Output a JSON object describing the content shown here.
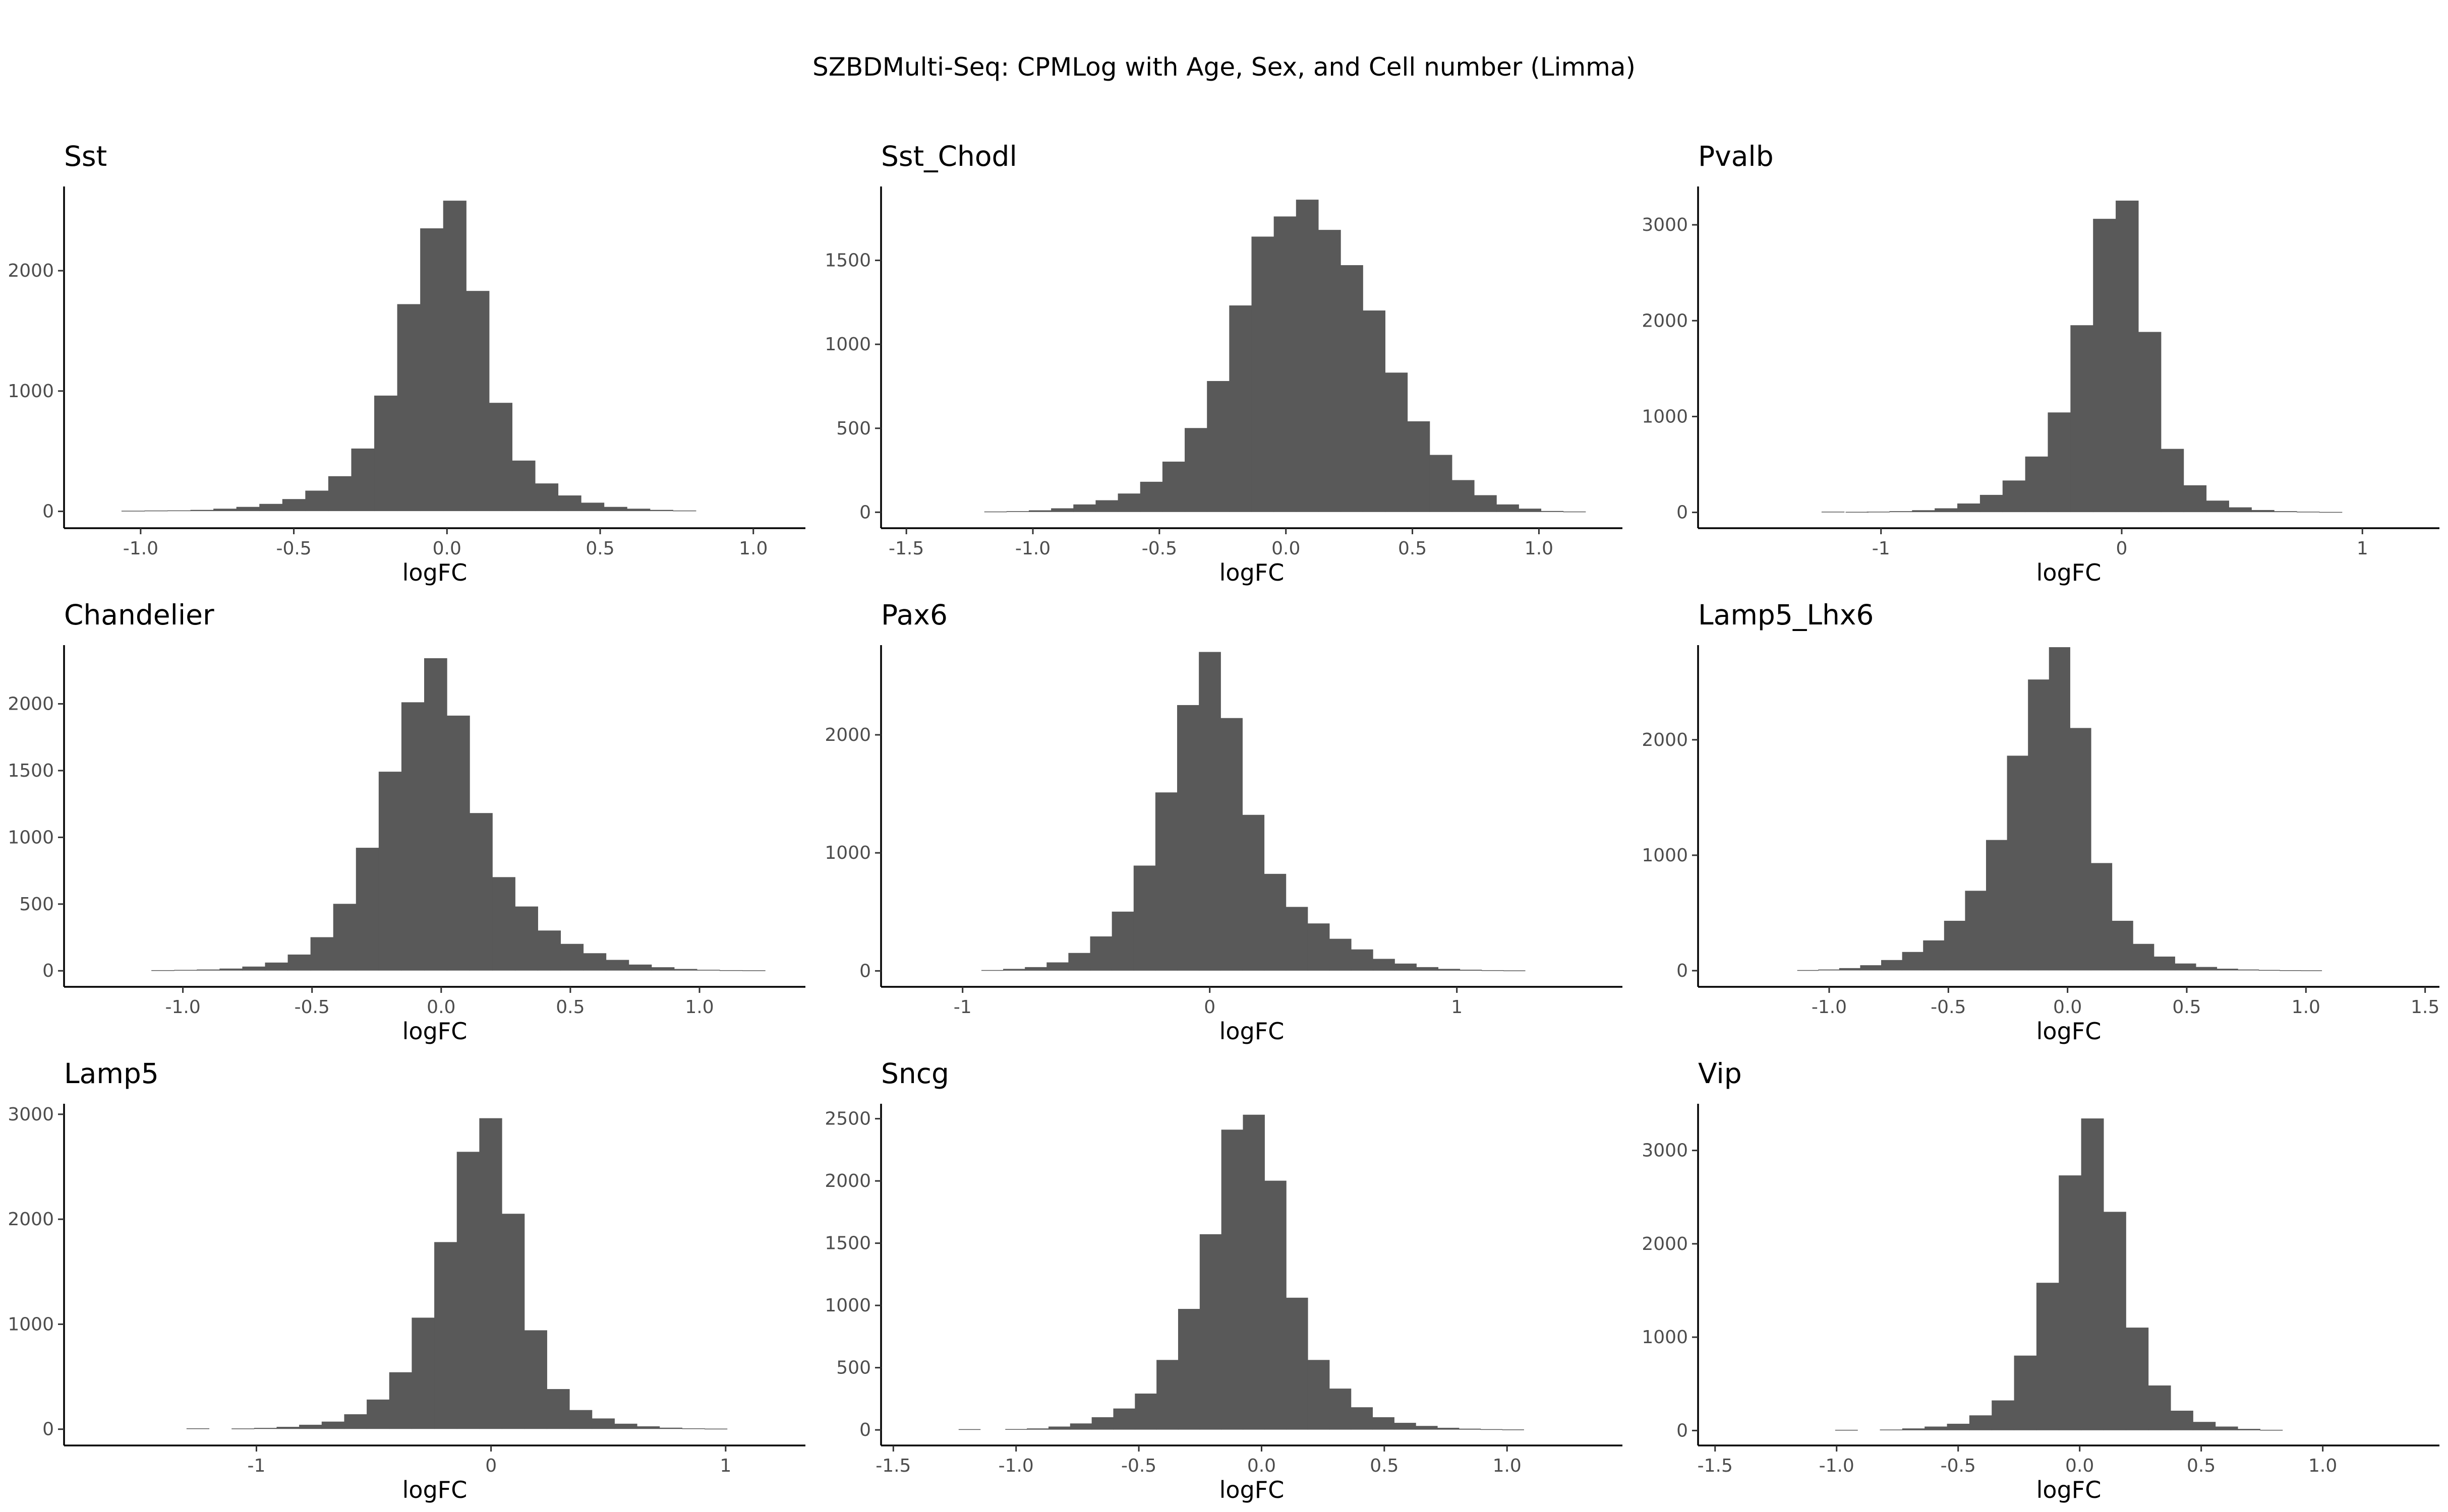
{
  "title": "SZBDMulti-Seq: CPMLog with Age, Sex, and Cell number (Limma)",
  "bar_color": "#595959",
  "chart_data": [
    {
      "type": "bar",
      "title": "Sst",
      "xlabel": "logFC",
      "ylabel": "",
      "xlim": [
        -1.25,
        1.17
      ],
      "ylim": [
        -140,
        2700
      ],
      "xticks": [
        -1.0,
        -0.5,
        0.0,
        0.5,
        1.0
      ],
      "xtick_labels": [
        "-1.0",
        "-0.5",
        "0.0",
        "0.5",
        "1.0"
      ],
      "yticks": [
        0,
        1000,
        2000
      ],
      "ytick_labels": [
        "0",
        "1000",
        "2000"
      ],
      "bin_width": 0.075,
      "bins_x": [
        -1.025,
        -0.95,
        -0.875,
        -0.8,
        -0.725,
        -0.65,
        -0.575,
        -0.5,
        -0.425,
        -0.35,
        -0.275,
        -0.2,
        -0.125,
        -0.05,
        0.025,
        0.1,
        0.175,
        0.25,
        0.325,
        0.4,
        0.475,
        0.55,
        0.625,
        0.7,
        0.775
      ],
      "counts": [
        3,
        5,
        6,
        10,
        20,
        35,
        60,
        100,
        170,
        290,
        520,
        960,
        1720,
        2350,
        2580,
        1830,
        900,
        420,
        230,
        130,
        70,
        35,
        20,
        10,
        5
      ]
    },
    {
      "type": "bar",
      "title": "Sst_Chodl",
      "xlabel": "logFC",
      "ylabel": "",
      "xlim": [
        -1.6,
        1.33
      ],
      "ylim": [
        -95,
        1940
      ],
      "xticks": [
        -1.5,
        -1.0,
        -0.5,
        0.0,
        0.5,
        1.0
      ],
      "xtick_labels": [
        "-1.5",
        "-1.0",
        "-0.5",
        "0.0",
        "0.5",
        "1.0"
      ],
      "yticks": [
        0,
        500,
        1000,
        1500
      ],
      "ytick_labels": [
        "0",
        "500",
        "1000",
        "1500"
      ],
      "bin_width": 0.088,
      "bins_x": [
        -1.148,
        -1.06,
        -0.972,
        -0.884,
        -0.796,
        -0.708,
        -0.62,
        -0.532,
        -0.444,
        -0.356,
        -0.268,
        -0.18,
        -0.092,
        -0.004,
        0.084,
        0.172,
        0.26,
        0.348,
        0.436,
        0.524,
        0.612,
        0.7,
        0.788,
        0.876,
        0.964,
        1.052,
        1.14
      ],
      "counts": [
        3,
        5,
        10,
        22,
        45,
        70,
        110,
        180,
        300,
        500,
        780,
        1230,
        1640,
        1760,
        1860,
        1680,
        1470,
        1200,
        830,
        540,
        340,
        190,
        100,
        45,
        20,
        6,
        3
      ]
    },
    {
      "type": "bar",
      "title": "Pvalb",
      "xlabel": "logFC",
      "ylabel": "",
      "xlim": [
        -1.76,
        1.32
      ],
      "ylim": [
        -165,
        3400
      ],
      "xticks": [
        -1,
        0,
        1
      ],
      "xtick_labels": [
        "-1",
        "0",
        "1"
      ],
      "yticks": [
        0,
        1000,
        2000,
        3000
      ],
      "ytick_labels": [
        "0",
        "1000",
        "2000",
        "3000"
      ],
      "bin_width": 0.094,
      "bins_x": [
        -1.2,
        -1.1,
        -1.012,
        -0.918,
        -0.824,
        -0.73,
        -0.636,
        -0.542,
        -0.448,
        -0.354,
        -0.26,
        -0.166,
        -0.072,
        0.022,
        0.116,
        0.21,
        0.304,
        0.398,
        0.492,
        0.586,
        0.68,
        0.774,
        0.868
      ],
      "counts": [
        5,
        3,
        5,
        10,
        20,
        40,
        90,
        180,
        330,
        580,
        1040,
        1950,
        3060,
        3250,
        1880,
        660,
        280,
        120,
        50,
        22,
        10,
        5,
        2
      ]
    },
    {
      "type": "bar",
      "title": "Chandelier",
      "xlabel": "logFC",
      "ylabel": "",
      "xlim": [
        -1.46,
        1.41
      ],
      "ylim": [
        -120,
        2440
      ],
      "xticks": [
        -1.0,
        -0.5,
        0.0,
        0.5,
        1.0
      ],
      "xtick_labels": [
        "-1.0",
        "-0.5",
        "0.0",
        "0.5",
        "1.0"
      ],
      "yticks": [
        0,
        500,
        1000,
        1500,
        2000
      ],
      "ytick_labels": [
        "0",
        "500",
        "1000",
        "1500",
        "2000"
      ],
      "bin_width": 0.088,
      "bins_x": [
        -1.078,
        -0.99,
        -0.902,
        -0.814,
        -0.726,
        -0.638,
        -0.55,
        -0.462,
        -0.374,
        -0.286,
        -0.198,
        -0.11,
        -0.022,
        0.066,
        0.154,
        0.242,
        0.33,
        0.418,
        0.506,
        0.594,
        0.682,
        0.77,
        0.858,
        0.946,
        1.034,
        1.122,
        1.21
      ],
      "counts": [
        3,
        5,
        8,
        15,
        30,
        60,
        120,
        250,
        500,
        920,
        1490,
        2010,
        2340,
        1910,
        1180,
        700,
        480,
        300,
        200,
        130,
        80,
        45,
        25,
        12,
        6,
        3,
        2
      ]
    },
    {
      "type": "bar",
      "title": "Pax6",
      "xlabel": "logFC",
      "ylabel": "",
      "xlim": [
        -1.33,
        1.67
      ],
      "ylim": [
        -135,
        2760
      ],
      "xticks": [
        -1,
        0,
        1
      ],
      "xtick_labels": [
        "-1",
        "0",
        "1"
      ],
      "yticks": [
        0,
        1000,
        2000
      ],
      "ytick_labels": [
        "0",
        "1000",
        "2000"
      ],
      "bin_width": 0.088,
      "bins_x": [
        -0.88,
        -0.792,
        -0.704,
        -0.616,
        -0.528,
        -0.44,
        -0.352,
        -0.264,
        -0.176,
        -0.088,
        0.0,
        0.088,
        0.176,
        0.264,
        0.352,
        0.44,
        0.528,
        0.616,
        0.704,
        0.792,
        0.88,
        0.968,
        1.056,
        1.144,
        1.232
      ],
      "counts": [
        5,
        15,
        30,
        70,
        150,
        290,
        500,
        890,
        1510,
        2250,
        2700,
        2140,
        1320,
        820,
        540,
        400,
        270,
        180,
        100,
        60,
        30,
        15,
        8,
        4,
        2
      ]
    },
    {
      "type": "bar",
      "title": "Lamp5_Lhx6",
      "xlabel": "logFC",
      "ylabel": "",
      "xlim": [
        -1.55,
        1.56
      ],
      "ylim": [
        -140,
        2820
      ],
      "xticks": [
        -1.0,
        -0.5,
        0.0,
        0.5,
        1.0,
        1.5
      ],
      "xtick_labels": [
        "-1.0",
        "-0.5",
        "0.0",
        "0.5",
        "1.0",
        "1.5"
      ],
      "yticks": [
        0,
        1000,
        2000
      ],
      "ytick_labels": [
        "0",
        "1000",
        "2000"
      ],
      "bin_width": 0.088,
      "bins_x": [
        -1.09,
        -1.002,
        -0.914,
        -0.826,
        -0.738,
        -0.65,
        -0.562,
        -0.474,
        -0.386,
        -0.298,
        -0.21,
        -0.122,
        -0.034,
        0.054,
        0.142,
        0.23,
        0.318,
        0.406,
        0.494,
        0.582,
        0.67,
        0.758,
        0.846,
        0.934,
        1.022
      ],
      "counts": [
        3,
        8,
        20,
        45,
        90,
        160,
        260,
        430,
        690,
        1130,
        1860,
        2520,
        2800,
        2100,
        930,
        430,
        230,
        120,
        60,
        30,
        15,
        8,
        4,
        2,
        1
      ]
    },
    {
      "type": "bar",
      "title": "Lamp5",
      "xlabel": "logFC",
      "ylabel": "",
      "xlim": [
        -1.82,
        1.34
      ],
      "ylim": [
        -155,
        3100
      ],
      "xticks": [
        -1,
        0,
        1
      ],
      "xtick_labels": [
        "-1",
        "0",
        "1"
      ],
      "yticks": [
        0,
        1000,
        2000,
        3000
      ],
      "ytick_labels": [
        "0",
        "1000",
        "2000",
        "3000"
      ],
      "bin_width": 0.096,
      "bins_x": [
        -1.25,
        -1.058,
        -0.962,
        -0.866,
        -0.77,
        -0.674,
        -0.578,
        -0.482,
        -0.386,
        -0.29,
        -0.194,
        -0.098,
        -0.002,
        0.094,
        0.19,
        0.286,
        0.382,
        0.478,
        0.574,
        0.67,
        0.766,
        0.862,
        0.958
      ],
      "counts": [
        6,
        5,
        10,
        20,
        40,
        70,
        140,
        280,
        540,
        1060,
        1780,
        2640,
        2960,
        2050,
        940,
        380,
        180,
        100,
        50,
        25,
        12,
        6,
        3
      ]
    },
    {
      "type": "bar",
      "title": "Sncg",
      "xlabel": "logFC",
      "ylabel": "",
      "xlim": [
        -1.55,
        1.47
      ],
      "ylim": [
        -125,
        2620
      ],
      "xticks": [
        -1.5,
        -1.0,
        -0.5,
        0.0,
        0.5,
        1.0
      ],
      "xtick_labels": [
        "-1.5",
        "-1.0",
        "-0.5",
        "0.0",
        "0.5",
        "1.0"
      ],
      "yticks": [
        0,
        500,
        1000,
        1500,
        2000,
        2500
      ],
      "ytick_labels": [
        "0",
        "500",
        "1000",
        "1500",
        "2000",
        "2500"
      ],
      "bin_width": 0.088,
      "bins_x": [
        -1.19,
        -1.0,
        -0.912,
        -0.824,
        -0.736,
        -0.648,
        -0.56,
        -0.472,
        -0.384,
        -0.296,
        -0.208,
        -0.12,
        -0.032,
        0.056,
        0.144,
        0.232,
        0.32,
        0.408,
        0.496,
        0.584,
        0.672,
        0.76,
        0.848,
        0.936,
        1.024
      ],
      "counts": [
        4,
        5,
        10,
        25,
        50,
        100,
        170,
        290,
        560,
        970,
        1570,
        2410,
        2530,
        2000,
        1060,
        560,
        330,
        180,
        100,
        55,
        30,
        15,
        8,
        4,
        2
      ]
    },
    {
      "type": "bar",
      "title": "Vip",
      "xlabel": "logFC",
      "ylabel": "",
      "xlim": [
        -1.57,
        1.48
      ],
      "ylim": [
        -160,
        3500
      ],
      "xticks": [
        -1.5,
        -1.0,
        -0.5,
        0.0,
        0.5,
        1.0
      ],
      "xtick_labels": [
        "-1.5",
        "-1.0",
        "-0.5",
        "0.0",
        "0.5",
        "1.0"
      ],
      "yticks": [
        0,
        1000,
        2000,
        3000
      ],
      "ytick_labels": [
        "0",
        "1000",
        "2000",
        "3000"
      ],
      "bin_width": 0.092,
      "bins_x": [
        -0.96,
        -0.776,
        -0.684,
        -0.592,
        -0.5,
        -0.408,
        -0.316,
        -0.224,
        -0.132,
        -0.04,
        0.052,
        0.144,
        0.236,
        0.328,
        0.42,
        0.512,
        0.604,
        0.696,
        0.788
      ],
      "counts": [
        5,
        8,
        20,
        40,
        70,
        160,
        320,
        800,
        1580,
        2730,
        3340,
        2340,
        1100,
        480,
        210,
        90,
        40,
        15,
        5
      ]
    }
  ]
}
